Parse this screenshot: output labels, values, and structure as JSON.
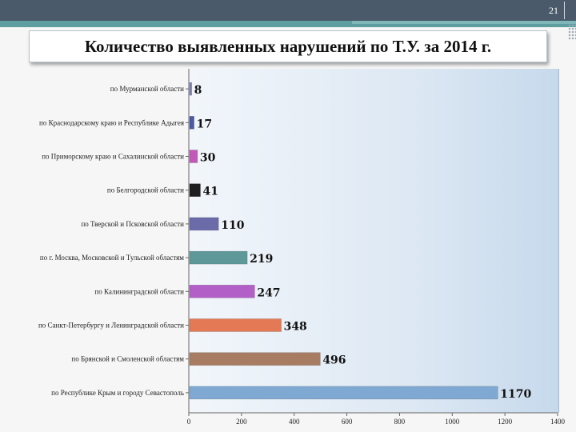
{
  "slide": {
    "number": "21"
  },
  "chart_data": {
    "type": "bar",
    "orientation": "horizontal",
    "title": "Количество выявленных нарушений по Т.У. за 2014 г.",
    "categories": [
      "по Мурманской области",
      "по Краснодарскому краю и Республике Адыгея",
      "по Приморскому краю и Сахалинской области",
      "по Белгородской области",
      "по Тверской  и Псковской области",
      "по г. Москва, Московской и Тульской областям",
      "по Калининградской области",
      "по Санкт-Петербургу и Ленинградской области",
      "по Брянской и Смоленской областям",
      "по Республике Крым и городу Севастополь"
    ],
    "values": [
      8,
      17,
      30,
      41,
      110,
      219,
      247,
      348,
      496,
      1170
    ],
    "value_labels": [
      "8",
      "17",
      "30",
      "41",
      "110",
      "219",
      "247",
      "348",
      "496",
      "1170"
    ],
    "bar_colors": [
      "#7b7fb3",
      "#4d59a6",
      "#c259b8",
      "#1f1f1f",
      "#6a6ba8",
      "#5e9898",
      "#b25fc7",
      "#e37a55",
      "#a87c62",
      "#7fa8d2"
    ],
    "xlim": [
      0,
      1400
    ],
    "xticks": [
      "0",
      "200",
      "400",
      "600",
      "800",
      "1000",
      "1200",
      "1400"
    ],
    "grid": false
  }
}
